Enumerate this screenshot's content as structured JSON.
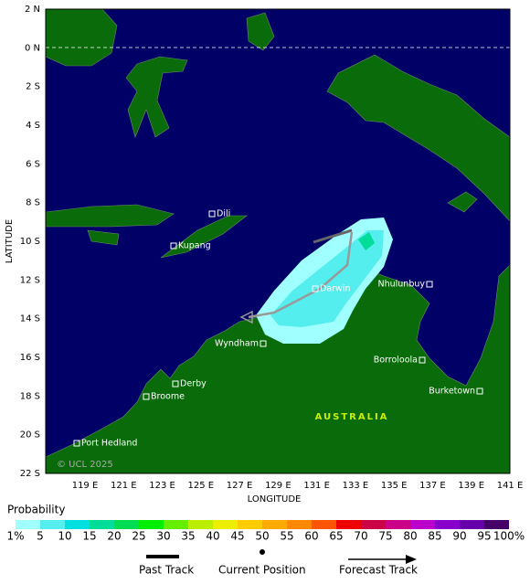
{
  "map": {
    "lat_labels": [
      "2 N",
      "0 N",
      "2 S",
      "4 S",
      "6 S",
      "8 S",
      "10 S",
      "12 S",
      "14 S",
      "16 S",
      "18 S",
      "20 S",
      "22 S"
    ],
    "lon_labels": [
      "119 E",
      "121 E",
      "123 E",
      "125 E",
      "127 E",
      "129 E",
      "131 E",
      "133 E",
      "135 E",
      "137 E",
      "139 E",
      "141 E"
    ],
    "x_label": "LONGITUDE",
    "y_label": "LATITUDE",
    "places": [
      "Dili",
      "Kupang",
      "Darwin",
      "Nhulunbuy",
      "Wyndham",
      "Derby",
      "Broome",
      "Borroloola",
      "Burketown",
      "Port Hedland"
    ],
    "region_label": "AUSTRALIA",
    "copyright": "© UCL 2025"
  },
  "legend": {
    "title": "Probability",
    "labels": [
      "1%",
      "5",
      "10",
      "15",
      "20",
      "25",
      "30",
      "35",
      "40",
      "45",
      "50",
      "55",
      "60",
      "65",
      "70",
      "75",
      "80",
      "85",
      "90",
      "95",
      "100%"
    ],
    "colors": [
      "#a0ffff",
      "#55eeee",
      "#00e0e0",
      "#00dd99",
      "#00dd55",
      "#00ee00",
      "#66ee00",
      "#bbee00",
      "#eeee00",
      "#ffcc00",
      "#ffaa00",
      "#ff8800",
      "#ff5500",
      "#ee0000",
      "#cc0044",
      "#cc0088",
      "#bb00cc",
      "#8800cc",
      "#6600aa",
      "#440066"
    ],
    "items": [
      "Past Track",
      "Current Position",
      "Forecast Track"
    ]
  }
}
